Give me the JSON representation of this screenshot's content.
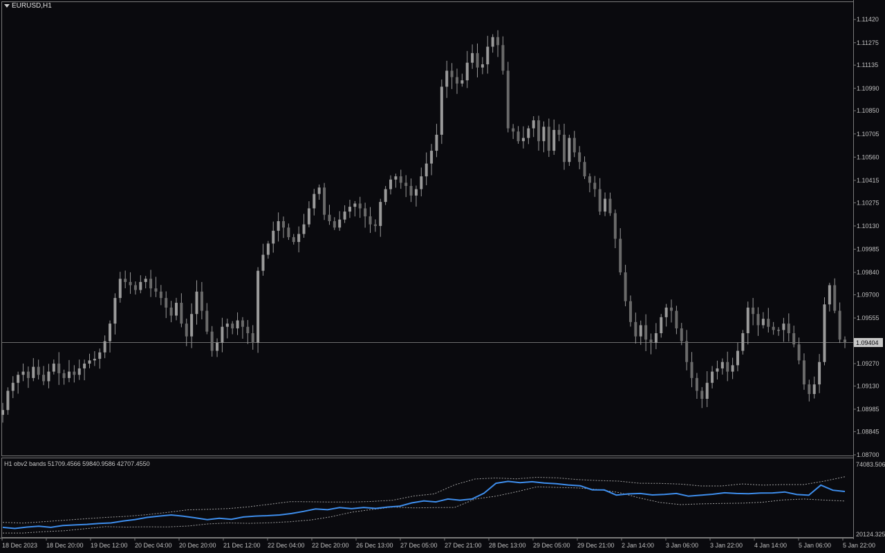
{
  "header": {
    "symbol_label": "EURUSD,H1"
  },
  "indicator": {
    "label": "H1 obv2 bands 51709.4566 59840.9586 42707.4550",
    "scale_top": "74083.506",
    "scale_bottom": "20124.325"
  },
  "colors": {
    "background": "#0a0a0e",
    "candle": "#9a9a9a",
    "axis": "#c0c0c0",
    "grid_line": "#6e6e6e",
    "obv_line": "#3e8eed",
    "band_line": "#a0a0a0",
    "price_label_bg": "#c8c8c8"
  },
  "current_price": "1.09404",
  "chart_data": [
    {
      "type": "candlestick",
      "symbol": "EURUSD",
      "timeframe": "H1",
      "ylim": [
        1.087,
        1.1149
      ],
      "y_ticks": [
        "1.11420",
        "1.11275",
        "1.11135",
        "1.10990",
        "1.10850",
        "1.10705",
        "1.10560",
        "1.10415",
        "1.10275",
        "1.10130",
        "1.09985",
        "1.09840",
        "1.09700",
        "1.09555",
        "1.09404",
        "1.09270",
        "1.09130",
        "1.08985",
        "1.08845",
        "1.08700"
      ],
      "x_ticks": [
        "18 Dec 2023",
        "18 Dec 20:00",
        "19 Dec 12:00",
        "20 Dec 04:00",
        "20 Dec 20:00",
        "21 Dec 12:00",
        "22 Dec 04:00",
        "22 Dec 20:00",
        "26 Dec 13:00",
        "27 Dec 05:00",
        "27 Dec 21:00",
        "28 Dec 13:00",
        "29 Dec 05:00",
        "29 Dec 21:00",
        "2 Jan 14:00",
        "3 Jan 06:00",
        "3 Jan 22:00",
        "4 Jan 14:00",
        "5 Jan 06:00",
        "5 Jan 22:00"
      ],
      "close_path": [
        1.0898,
        1.091,
        1.0915,
        1.092,
        1.0922,
        1.0918,
        1.0925,
        1.092,
        1.0916,
        1.0922,
        1.0927,
        1.0921,
        1.0918,
        1.0922,
        1.092,
        1.0924,
        1.0927,
        1.0929,
        1.093,
        1.0934,
        1.0941,
        1.0952,
        1.0968,
        1.098,
        1.0978,
        1.0976,
        1.0973,
        1.0978,
        1.098,
        1.0974,
        1.0972,
        1.0968,
        1.0962,
        1.0957,
        1.0965,
        1.0952,
        1.0944,
        1.0958,
        1.0972,
        1.096,
        1.0947,
        1.0935,
        1.094,
        1.095,
        1.0952,
        1.0949,
        1.0954,
        1.095,
        1.0946,
        1.094,
        1.0985,
        1.0995,
        1.1002,
        1.101,
        1.1016,
        1.1012,
        1.1006,
        1.1003,
        1.1008,
        1.1014,
        1.1024,
        1.1033,
        1.1037,
        1.102,
        1.1016,
        1.1012,
        1.1017,
        1.1022,
        1.1025,
        1.1027,
        1.1024,
        1.1019,
        1.1014,
        1.1013,
        1.1028,
        1.1036,
        1.1042,
        1.1044,
        1.104,
        1.1038,
        1.1032,
        1.1036,
        1.1044,
        1.1052,
        1.106,
        1.107,
        1.11,
        1.111,
        1.1106,
        1.1102,
        1.1104,
        1.1115,
        1.1121,
        1.1112,
        1.1114,
        1.1125,
        1.1131,
        1.1126,
        1.111,
        1.1074,
        1.1072,
        1.1066,
        1.1068,
        1.1074,
        1.1079,
        1.1066,
        1.1075,
        1.106,
        1.1073,
        1.107,
        1.1053,
        1.1068,
        1.1059,
        1.1053,
        1.1044,
        1.104,
        1.1036,
        1.1022,
        1.103,
        1.1021,
        1.1005,
        1.0984,
        1.0966,
        1.0953,
        1.0944,
        1.0951,
        1.0942,
        1.094,
        1.0946,
        1.0956,
        1.0962,
        1.096,
        1.0949,
        1.0941,
        1.0928,
        1.0918,
        1.091,
        1.0905,
        1.0915,
        1.0922,
        1.0924,
        1.0928,
        1.0922,
        1.0926,
        1.0935,
        1.0946,
        1.0962,
        1.0958,
        1.0951,
        1.0955,
        1.095,
        1.0948,
        1.0948,
        1.0952,
        1.0946,
        1.0939,
        1.0929,
        1.0914,
        1.0908,
        1.0914,
        1.0928,
        1.0964,
        1.0976,
        1.096,
        1.0942,
        1.094
      ]
    },
    {
      "type": "line",
      "name": "H1 obv2 bands",
      "ylim": [
        20124.325,
        74083.506
      ],
      "series": [
        {
          "role": "obv",
          "values": [
            26500,
            25700,
            26700,
            27300,
            26500,
            27800,
            28200,
            28600,
            29200,
            29600,
            30900,
            32000,
            33500,
            34400,
            35200,
            34300,
            33200,
            31900,
            32900,
            32200,
            33800,
            34400,
            34700,
            35200,
            36200,
            37700,
            39400,
            38900,
            40400,
            39600,
            40500,
            39800,
            40800,
            41400,
            43700,
            45100,
            44400,
            46400,
            45600,
            46400,
            50500,
            57500,
            58800,
            57900,
            58600,
            57700,
            57200,
            56300,
            55700,
            52900,
            52800,
            49200,
            50000,
            50300,
            49300,
            49700,
            50300,
            48400,
            49100,
            49800,
            50800,
            50300,
            50100,
            50600,
            50700,
            51400,
            49600,
            49100,
            56200,
            52600,
            51700
          ]
        },
        {
          "role": "upper_band",
          "values": [
            30000,
            29500,
            30500,
            31500,
            32500,
            33500,
            34200,
            35400,
            37000,
            38800,
            39200,
            39700,
            41000,
            42800,
            44600,
            44500,
            44300,
            44300,
            44700,
            45600,
            48500,
            50000,
            56400,
            60500,
            61200,
            60600,
            61700,
            61300,
            60100,
            59400,
            59000,
            57500,
            57400,
            56900,
            55600,
            55600,
            57000,
            56200,
            56600,
            56600,
            59000,
            62100
          ]
        },
        {
          "role": "lower_band",
          "values": [
            22500,
            22500,
            23500,
            24100,
            25500,
            27000,
            26700,
            26900,
            26800,
            27400,
            28900,
            29600,
            29300,
            29700,
            30500,
            31700,
            34000,
            37200,
            39100,
            40800,
            40200,
            40400,
            40500,
            46400,
            48400,
            51500,
            55000,
            54600,
            54200,
            53100,
            51000,
            47200,
            44000,
            42500,
            43000,
            43300,
            43500,
            44200,
            45800,
            46400,
            45700,
            45000
          ]
        }
      ]
    }
  ]
}
